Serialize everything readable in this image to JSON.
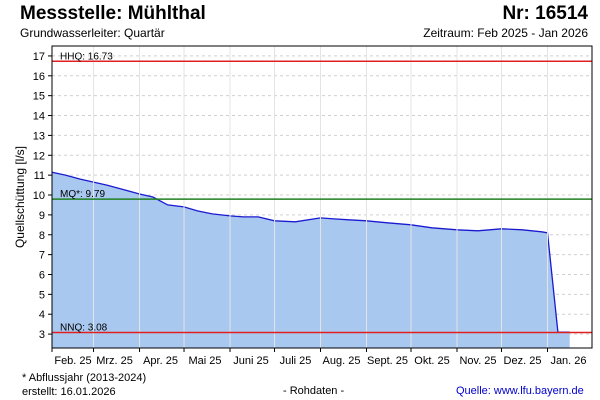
{
  "header": {
    "station": "Messstelle: Mühlthal",
    "number": "Nr: 16514",
    "aquifer": "Grundwasserleiter: Quartär",
    "period": "Zeitraum: Feb 2025 - Jan 2026"
  },
  "footer": {
    "note": "* Abflussjahr (2013-2024)",
    "created": "erstellt:  16.01.2026",
    "raw": "- Rohdaten -",
    "source": "Quelle: www.lfu.bayern.de"
  },
  "colors": {
    "area_fill": "#a9c8f0",
    "line": "#1a1ad0",
    "hhq_nnq": "#e02020",
    "mq": "#208020",
    "grid": "#d0d0d0"
  },
  "chart_data": {
    "type": "area",
    "ylabel": "Quellschüttung [l/s]",
    "ylim": [
      2.3,
      17.5
    ],
    "yticks": [
      3,
      4,
      5,
      6,
      7,
      8,
      9,
      10,
      11,
      12,
      13,
      14,
      15,
      16,
      17
    ],
    "grid": true,
    "x_range": [
      "2025-02-01",
      "2026-01-31"
    ],
    "month_ticks": [
      {
        "label": "Feb. 25",
        "date": "2025-02-01"
      },
      {
        "label": "Mrz. 25",
        "date": "2025-03-01"
      },
      {
        "label": "Apr. 25",
        "date": "2025-04-01"
      },
      {
        "label": "Mai 25",
        "date": "2025-05-01"
      },
      {
        "label": "Juni 25",
        "date": "2025-06-01"
      },
      {
        "label": "Juli 25",
        "date": "2025-07-01"
      },
      {
        "label": "Aug. 25",
        "date": "2025-08-01"
      },
      {
        "label": "Sept. 25",
        "date": "2025-09-01"
      },
      {
        "label": "Okt. 25",
        "date": "2025-10-01"
      },
      {
        "label": "Nov. 25",
        "date": "2025-11-01"
      },
      {
        "label": "Dez. 25",
        "date": "2025-12-01"
      },
      {
        "label": "Jan. 26",
        "date": "2026-01-01"
      }
    ],
    "reference_lines": [
      {
        "label": "HHQ: 16.73",
        "value": 16.73,
        "color": "#e02020"
      },
      {
        "label": "MQ*: 9.79",
        "value": 9.79,
        "color": "#208020"
      },
      {
        "label": "NNQ: 3.08",
        "value": 3.08,
        "color": "#e02020"
      }
    ],
    "series": [
      {
        "x": [
          "2025-02-01",
          "2025-02-10",
          "2025-02-20",
          "2025-03-01",
          "2025-03-10",
          "2025-03-20",
          "2025-04-01",
          "2025-04-10",
          "2025-04-20",
          "2025-05-01",
          "2025-05-10",
          "2025-05-20",
          "2025-06-01",
          "2025-06-10",
          "2025-06-20",
          "2025-07-01",
          "2025-07-15",
          "2025-08-01",
          "2025-08-10",
          "2025-08-20",
          "2025-09-01",
          "2025-09-15",
          "2025-10-01",
          "2025-10-15",
          "2025-11-01",
          "2025-11-15",
          "2025-12-01",
          "2025-12-15",
          "2025-12-28",
          "2026-01-01",
          "2026-01-08",
          "2026-01-16"
        ],
        "y": [
          11.15,
          11.0,
          10.8,
          10.65,
          10.5,
          10.3,
          10.05,
          9.9,
          9.5,
          9.4,
          9.2,
          9.05,
          8.95,
          8.9,
          8.9,
          8.7,
          8.65,
          8.85,
          8.8,
          8.75,
          8.7,
          8.6,
          8.5,
          8.35,
          8.25,
          8.2,
          8.3,
          8.25,
          8.15,
          8.1,
          3.1,
          3.1
        ]
      }
    ]
  }
}
